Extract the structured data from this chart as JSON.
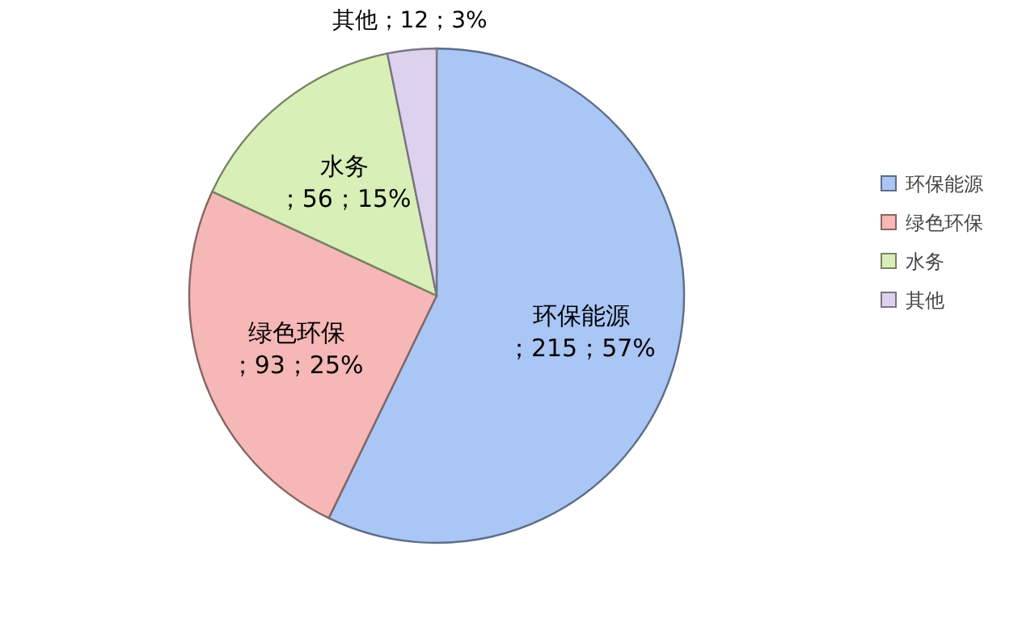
{
  "chart_data": {
    "type": "pie",
    "categories": [
      "环保能源",
      "绿色环保",
      "水务",
      "其他"
    ],
    "values": [
      215,
      93,
      56,
      12
    ],
    "value_labels": [
      "；215；57%",
      "；93；25%",
      "；56；15%",
      "；12；3%"
    ],
    "colors": [
      "#a9c6f5",
      "#f6b7b7",
      "#d8efb8",
      "#ddd2ee"
    ],
    "legend": "right"
  }
}
